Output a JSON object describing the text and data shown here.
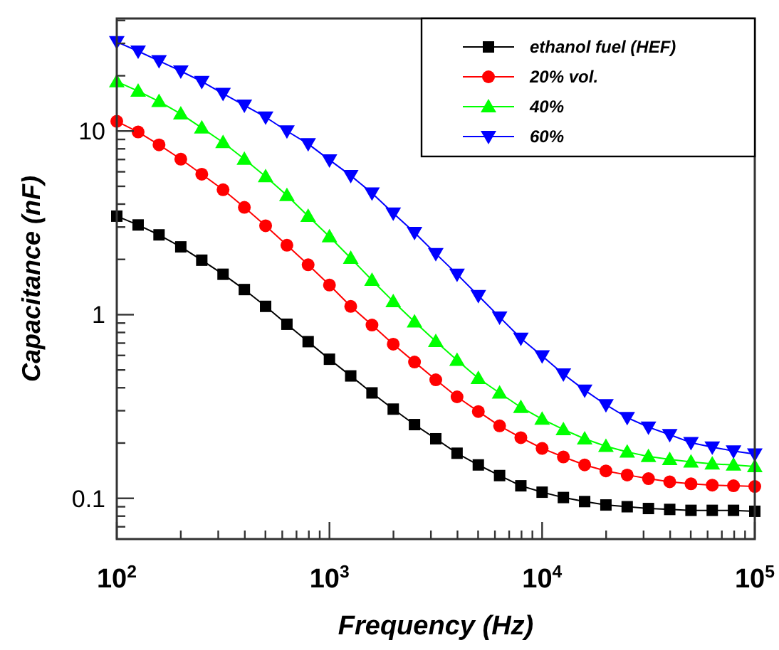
{
  "chart_data": {
    "type": "line",
    "xlabel": "Frequency  (Hz)",
    "ylabel": "Capacitance (nF)",
    "log": "xy",
    "grid": false,
    "legend": "top right",
    "line_style": "solid",
    "x": [
      100,
      126,
      158,
      200,
      251,
      316,
      398,
      501,
      631,
      794,
      1000,
      1259,
      1585,
      1995,
      2512,
      3162,
      3981,
      5012,
      6310,
      7943,
      10000,
      12589,
      15849,
      19953,
      25119,
      31623,
      39811,
      50119,
      63096,
      79433,
      100000
    ],
    "xlim": [
      100,
      100000
    ],
    "ylim": [
      0.06,
      41
    ],
    "xticks": [
      {
        "value": 100,
        "label": "10$^{2}$"
      },
      {
        "value": 200,
        "label": null
      },
      {
        "value": 300,
        "label": null
      },
      {
        "value": 400,
        "label": null
      },
      {
        "value": 500,
        "label": null
      },
      {
        "value": 600,
        "label": null
      },
      {
        "value": 700,
        "label": null
      },
      {
        "value": 800,
        "label": null
      },
      {
        "value": 900,
        "label": null
      },
      {
        "value": 1000,
        "label": "10$^{3}$"
      },
      {
        "value": 2000,
        "label": null
      },
      {
        "value": 3000,
        "label": null
      },
      {
        "value": 4000,
        "label": null
      },
      {
        "value": 5000,
        "label": null
      },
      {
        "value": 6000,
        "label": null
      },
      {
        "value": 7000,
        "label": null
      },
      {
        "value": 8000,
        "label": null
      },
      {
        "value": 9000,
        "label": null
      },
      {
        "value": 10000,
        "label": "10$^{4}$"
      },
      {
        "value": 20000,
        "label": null
      },
      {
        "value": 30000,
        "label": null
      },
      {
        "value": 40000,
        "label": null
      },
      {
        "value": 50000,
        "label": null
      },
      {
        "value": 60000,
        "label": null
      },
      {
        "value": 70000,
        "label": null
      },
      {
        "value": 80000,
        "label": null
      },
      {
        "value": 90000,
        "label": null
      },
      {
        "value": 100000,
        "label": "10$^{5}$"
      }
    ],
    "yticks": [
      {
        "value": 0.07,
        "label": null
      },
      {
        "value": 0.08,
        "label": null
      },
      {
        "value": 0.09,
        "label": null
      },
      0.1,
      {
        "value": 0.2,
        "label": null
      },
      {
        "value": 0.3,
        "label": null
      },
      {
        "value": 0.4,
        "label": null
      },
      {
        "value": 0.5,
        "label": null
      },
      {
        "value": 0.6,
        "label": null
      },
      {
        "value": 0.7,
        "label": null
      },
      {
        "value": 0.8,
        "label": null
      },
      {
        "value": 0.9,
        "label": null
      },
      1,
      {
        "value": 2,
        "label": null
      },
      {
        "value": 3,
        "label": null
      },
      {
        "value": 4,
        "label": null
      },
      {
        "value": 5,
        "label": null
      },
      {
        "value": 6,
        "label": null
      },
      {
        "value": 7,
        "label": null
      },
      {
        "value": 8,
        "label": null
      },
      {
        "value": 9,
        "label": null
      },
      10,
      {
        "value": 20,
        "label": null
      },
      {
        "value": 30,
        "label": null
      },
      {
        "value": 40,
        "label": null
      }
    ],
    "series": [
      {
        "name": "ethanol fuel  (HEF)",
        "color": "#000000",
        "marker": "square",
        "values": [
          3.44,
          3.08,
          2.72,
          2.34,
          1.98,
          1.66,
          1.37,
          1.11,
          0.887,
          0.713,
          0.572,
          0.464,
          0.375,
          0.306,
          0.252,
          0.211,
          0.176,
          0.152,
          0.133,
          0.117,
          0.108,
          0.101,
          0.096,
          0.092,
          0.09,
          0.088,
          0.087,
          0.086,
          0.086,
          0.086,
          0.085
        ]
      },
      {
        "name": "20% vol.",
        "color": "#ff0000",
        "marker": "circle",
        "values": [
          11.3,
          9.88,
          8.41,
          7.03,
          5.82,
          4.79,
          3.84,
          3.05,
          2.39,
          1.87,
          1.45,
          1.11,
          0.878,
          0.691,
          0.552,
          0.442,
          0.357,
          0.297,
          0.248,
          0.214,
          0.187,
          0.168,
          0.152,
          0.141,
          0.134,
          0.128,
          0.123,
          0.12,
          0.118,
          0.117,
          0.116
        ]
      },
      {
        "name": "40%",
        "color": "#00ff00",
        "marker": "triangle",
        "values": [
          18.6,
          16.5,
          14.5,
          12.4,
          10.4,
          8.67,
          7.03,
          5.65,
          4.46,
          3.44,
          2.66,
          2.03,
          1.54,
          1.18,
          0.915,
          0.716,
          0.565,
          0.45,
          0.375,
          0.313,
          0.27,
          0.237,
          0.211,
          0.192,
          0.179,
          0.169,
          0.163,
          0.158,
          0.154,
          0.152,
          0.149
        ]
      },
      {
        "name": "60%",
        "color": "#0000ff",
        "marker": "triangle-down",
        "values": [
          30.6,
          27.2,
          24.1,
          21.2,
          18.6,
          16.0,
          13.8,
          11.9,
          10.0,
          8.51,
          6.96,
          5.72,
          4.59,
          3.57,
          2.8,
          2.15,
          1.66,
          1.27,
          0.97,
          0.743,
          0.596,
          0.475,
          0.388,
          0.323,
          0.275,
          0.244,
          0.222,
          0.201,
          0.19,
          0.181,
          0.174
        ]
      }
    ]
  }
}
